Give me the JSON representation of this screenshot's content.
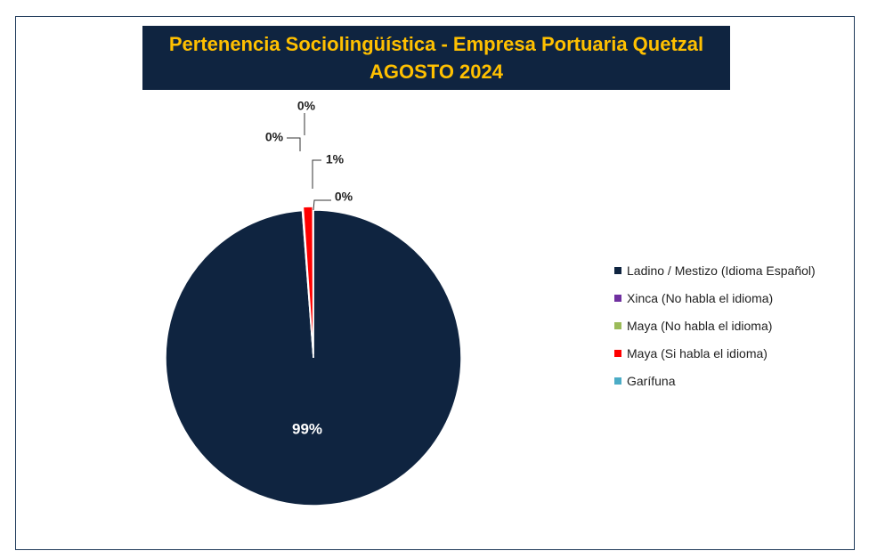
{
  "chart_data": {
    "type": "pie",
    "title": "Pertenencia Sociolingüística - Empresa Portuaria Quetzal",
    "subtitle": "AGOSTO 2024",
    "categories": [
      "Ladino / Mestizo (Idioma Español)",
      "Xinca (No habla el idioma)",
      "Maya  (No habla el idioma)",
      "Maya  (Si habla el idioma)",
      "Garífuna"
    ],
    "values": [
      98.8,
      0.05,
      0.05,
      1.05,
      0.05
    ],
    "data_labels": [
      "99%",
      "0%",
      "0%",
      "1%",
      "0%"
    ],
    "colors": [
      "#0f2440",
      "#7030a0",
      "#9bbb59",
      "#ff0000",
      "#4bacc6"
    ],
    "legend": "right"
  }
}
